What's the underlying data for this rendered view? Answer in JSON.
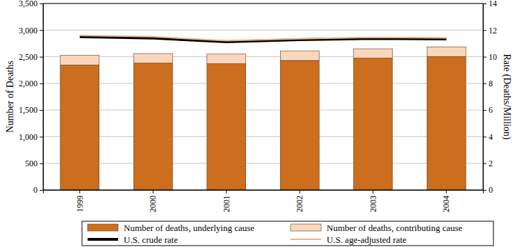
{
  "chart_data": {
    "type": "bar",
    "stacked": true,
    "grid": true,
    "legend": "bottom",
    "y_label": "Number of Deaths",
    "y2_label": "Rate (Deaths/Million)",
    "categories": [
      "1999",
      "2000",
      "2001",
      "2002",
      "2003",
      "2004"
    ],
    "series": [
      {
        "name": "Number of deaths, underlying cause",
        "type": "bar",
        "color": "#cc6e1e",
        "values": [
          2345,
          2380,
          2370,
          2430,
          2475,
          2505
        ]
      },
      {
        "name": "Number of deaths, contributing cause",
        "type": "bar",
        "color": "#fad7bc",
        "values": [
          180,
          180,
          180,
          180,
          175,
          180
        ]
      },
      {
        "name": "U.S. crude rate",
        "type": "line",
        "axis": "y2",
        "color": "#000000",
        "values": [
          11.5,
          11.4,
          11.13,
          11.28,
          11.38,
          11.34
        ]
      },
      {
        "name": "U.S. age-adjusted rate",
        "type": "line",
        "axis": "y2",
        "color": "#f0b080",
        "values": [
          11.6,
          11.5,
          11.2,
          11.35,
          11.45,
          11.42
        ]
      }
    ],
    "ylim": [
      0,
      3500
    ],
    "yticks": [
      0,
      500,
      {
        "value": 1000,
        "label": "1,000"
      },
      {
        "value": 1500,
        "label": "1,500"
      },
      {
        "value": 2000,
        "label": "2,000"
      },
      {
        "value": 2500,
        "label": "2,500"
      },
      {
        "value": 3000,
        "label": "3,000"
      },
      {
        "value": 3500,
        "label": "3,500"
      }
    ],
    "y2lim": [
      0,
      14
    ],
    "y2ticks": [
      0,
      2,
      4,
      6,
      8,
      10,
      12,
      14
    ]
  }
}
